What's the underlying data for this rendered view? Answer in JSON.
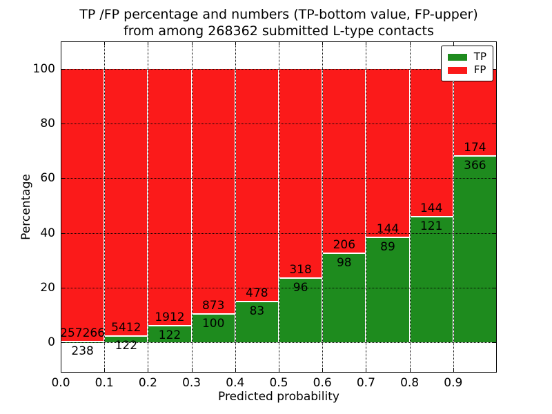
{
  "chart_data": {
    "type": "bar",
    "stacked": true,
    "title": "TP /FP percentage and numbers (TP-bottom value, FP-upper)\nfrom among 268362 submitted L-type contacts",
    "title_lines": [
      "TP /FP percentage and numbers (TP-bottom value, FP-upper)",
      "from among 268362 submitted L-type contacts"
    ],
    "xlabel": "Predicted probability",
    "ylabel": "Percentage",
    "xlim": [
      0.0,
      1.0
    ],
    "ylim": [
      -11,
      110
    ],
    "grid": true,
    "grid_style": "dotted",
    "background": "#ffffff",
    "xticks": [
      {
        "v": 0.0,
        "label": "0.0"
      },
      {
        "v": 0.1,
        "label": "0.1"
      },
      {
        "v": 0.2,
        "label": "0.2"
      },
      {
        "v": 0.3,
        "label": "0.3"
      },
      {
        "v": 0.4,
        "label": "0.4"
      },
      {
        "v": 0.5,
        "label": "0.5"
      },
      {
        "v": 0.6,
        "label": "0.6"
      },
      {
        "v": 0.7,
        "label": "0.7"
      },
      {
        "v": 0.8,
        "label": "0.8"
      },
      {
        "v": 0.9,
        "label": "0.9"
      }
    ],
    "yticks": [
      {
        "v": 0,
        "label": "0"
      },
      {
        "v": 20,
        "label": "20"
      },
      {
        "v": 40,
        "label": "40"
      },
      {
        "v": 60,
        "label": "60"
      },
      {
        "v": 80,
        "label": "80"
      },
      {
        "v": 100,
        "label": "100"
      }
    ],
    "series": [
      {
        "name": "TP",
        "color": "#1e8b1e",
        "counts": [
          238,
          122,
          122,
          100,
          83,
          96,
          98,
          89,
          121,
          366
        ]
      },
      {
        "name": "FP",
        "color": "#fb1a1a",
        "counts": [
          257266,
          5412,
          1912,
          873,
          478,
          318,
          206,
          144,
          144,
          174
        ]
      }
    ],
    "bins": [
      {
        "x0": 0.0,
        "x1": 0.1,
        "tp": 238,
        "fp": 257266,
        "tp_pct": 0.09
      },
      {
        "x0": 0.1,
        "x1": 0.2,
        "tp": 122,
        "fp": 5412,
        "tp_pct": 2.2
      },
      {
        "x0": 0.2,
        "x1": 0.3,
        "tp": 122,
        "fp": 1912,
        "tp_pct": 6.0
      },
      {
        "x0": 0.3,
        "x1": 0.4,
        "tp": 100,
        "fp": 873,
        "tp_pct": 10.28
      },
      {
        "x0": 0.4,
        "x1": 0.5,
        "tp": 83,
        "fp": 478,
        "tp_pct": 14.8
      },
      {
        "x0": 0.5,
        "x1": 0.6,
        "tp": 96,
        "fp": 318,
        "tp_pct": 23.19
      },
      {
        "x0": 0.6,
        "x1": 0.7,
        "tp": 98,
        "fp": 206,
        "tp_pct": 32.24
      },
      {
        "x0": 0.7,
        "x1": 0.8,
        "tp": 89,
        "fp": 144,
        "tp_pct": 38.2
      },
      {
        "x0": 0.8,
        "x1": 0.9,
        "tp": 121,
        "fp": 144,
        "tp_pct": 45.66
      },
      {
        "x0": 0.9,
        "x1": 1.0,
        "tp": 366,
        "fp": 174,
        "tp_pct": 67.78
      }
    ],
    "legend": {
      "position": "upper-right",
      "entries": [
        {
          "label": "TP",
          "color": "#1e8b1e"
        },
        {
          "label": "FP",
          "color": "#fb1a1a"
        }
      ]
    }
  }
}
